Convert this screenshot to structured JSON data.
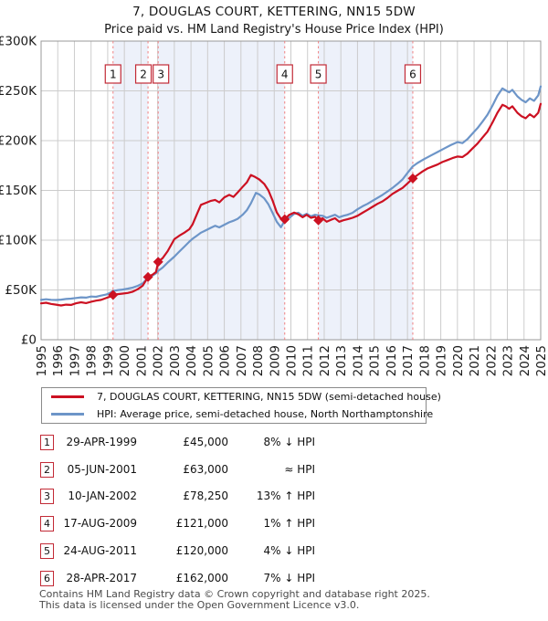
{
  "header": {
    "title": "7, DOUGLAS COURT, KETTERING, NN15 5DW",
    "subtitle": "Price paid vs. HM Land Registry's House Price Index (HPI)"
  },
  "chart_data": {
    "type": "line",
    "title": "7, DOUGLAS COURT, KETTERING, NN15 5DW",
    "subtitle": "Price paid vs. HM Land Registry's House Price Index (HPI)",
    "grid": true,
    "legend_position": "bottom",
    "x_axis": {
      "min": 1995,
      "max": 2025,
      "tick_years": [
        1995,
        1996,
        1997,
        1998,
        1999,
        2000,
        2001,
        2002,
        2003,
        2004,
        2005,
        2006,
        2007,
        2008,
        2009,
        2010,
        2011,
        2012,
        2013,
        2014,
        2015,
        2016,
        2017,
        2018,
        2019,
        2020,
        2021,
        2022,
        2023,
        2024,
        2025
      ]
    },
    "y_axis": {
      "min": 0,
      "max": 300000,
      "ticks": [
        {
          "label": "£300K",
          "value": 300000
        },
        {
          "label": "£250K",
          "value": 250000
        },
        {
          "label": "£200K",
          "value": 200000
        },
        {
          "label": "£150K",
          "value": 150000
        },
        {
          "label": "£100K",
          "value": 100000
        },
        {
          "label": "£50K",
          "value": 50000
        },
        {
          "label": "£0",
          "value": 0
        }
      ]
    },
    "colors": {
      "property_line": "#cc1122",
      "hpi_line": "#6d95c8",
      "band": "#edf1fa",
      "grid": "#cccccc",
      "frame": "#999999",
      "dash_line": "#f08080",
      "sale_marker": "#cc1122",
      "number_box_border": "#c22a36"
    },
    "series": [
      {
        "name": "HPI: Average price, semi-detached house, North Northamptonshire",
        "color": "#6d95c8",
        "points": [
          [
            1995.0,
            40000
          ],
          [
            1995.3,
            40600
          ],
          [
            1995.6,
            40100
          ],
          [
            1995.9,
            39900
          ],
          [
            1996.2,
            40300
          ],
          [
            1996.5,
            40900
          ],
          [
            1996.8,
            41300
          ],
          [
            1997.1,
            41900
          ],
          [
            1997.4,
            42600
          ],
          [
            1997.7,
            42300
          ],
          [
            1998.0,
            43400
          ],
          [
            1998.3,
            43100
          ],
          [
            1998.6,
            44300
          ],
          [
            1998.9,
            45300
          ],
          [
            1999.1,
            46800
          ],
          [
            1999.32,
            48900
          ],
          [
            1999.6,
            49800
          ],
          [
            1999.9,
            50400
          ],
          [
            2000.2,
            51300
          ],
          [
            2000.5,
            52400
          ],
          [
            2000.8,
            54100
          ],
          [
            2001.1,
            56600
          ],
          [
            2001.42,
            62000
          ],
          [
            2001.7,
            64600
          ],
          [
            2001.9,
            66800
          ],
          [
            2002.03,
            69200
          ],
          [
            2002.3,
            72500
          ],
          [
            2002.6,
            77500
          ],
          [
            2003.0,
            83500
          ],
          [
            2003.3,
            88500
          ],
          [
            2003.6,
            93500
          ],
          [
            2003.9,
            98500
          ],
          [
            2004.1,
            101500
          ],
          [
            2004.35,
            104500
          ],
          [
            2004.6,
            107500
          ],
          [
            2004.9,
            110000
          ],
          [
            2005.2,
            112500
          ],
          [
            2005.45,
            114500
          ],
          [
            2005.7,
            112800
          ],
          [
            2006.0,
            115500
          ],
          [
            2006.3,
            118000
          ],
          [
            2006.55,
            119500
          ],
          [
            2006.8,
            121500
          ],
          [
            2007.1,
            125500
          ],
          [
            2007.35,
            130000
          ],
          [
            2007.6,
            137000
          ],
          [
            2007.9,
            147500
          ],
          [
            2008.1,
            146000
          ],
          [
            2008.4,
            142000
          ],
          [
            2008.65,
            136000
          ],
          [
            2008.9,
            127500
          ],
          [
            2009.15,
            118500
          ],
          [
            2009.4,
            113000
          ],
          [
            2009.63,
            119700
          ],
          [
            2009.9,
            122500
          ],
          [
            2010.2,
            126500
          ],
          [
            2010.45,
            127500
          ],
          [
            2010.7,
            124500
          ],
          [
            2010.95,
            126500
          ],
          [
            2011.2,
            124000
          ],
          [
            2011.45,
            125500
          ],
          [
            2011.65,
            125000
          ],
          [
            2011.9,
            124500
          ],
          [
            2012.15,
            122500
          ],
          [
            2012.4,
            124000
          ],
          [
            2012.65,
            125500
          ],
          [
            2012.9,
            123000
          ],
          [
            2013.15,
            124500
          ],
          [
            2013.4,
            125500
          ],
          [
            2013.7,
            127500
          ],
          [
            2014.0,
            131000
          ],
          [
            2014.3,
            134000
          ],
          [
            2014.6,
            136500
          ],
          [
            2014.9,
            139500
          ],
          [
            2015.2,
            142500
          ],
          [
            2015.5,
            145500
          ],
          [
            2015.8,
            149000
          ],
          [
            2016.1,
            152500
          ],
          [
            2016.4,
            156500
          ],
          [
            2016.7,
            161000
          ],
          [
            2017.0,
            167500
          ],
          [
            2017.32,
            174200
          ],
          [
            2017.6,
            177500
          ],
          [
            2018.0,
            181500
          ],
          [
            2018.4,
            185000
          ],
          [
            2018.8,
            188500
          ],
          [
            2019.2,
            192000
          ],
          [
            2019.6,
            195500
          ],
          [
            2020.0,
            198500
          ],
          [
            2020.3,
            197500
          ],
          [
            2020.6,
            201500
          ],
          [
            2020.9,
            207000
          ],
          [
            2021.2,
            212500
          ],
          [
            2021.5,
            219000
          ],
          [
            2021.8,
            226000
          ],
          [
            2022.1,
            235000
          ],
          [
            2022.4,
            245000
          ],
          [
            2022.7,
            252500
          ],
          [
            2022.9,
            250500
          ],
          [
            2023.1,
            248500
          ],
          [
            2023.3,
            251000
          ],
          [
            2023.6,
            244500
          ],
          [
            2023.85,
            241000
          ],
          [
            2024.1,
            238500
          ],
          [
            2024.35,
            242500
          ],
          [
            2024.6,
            240000
          ],
          [
            2024.85,
            245500
          ],
          [
            2025.0,
            254500
          ]
        ]
      },
      {
        "name": "7, DOUGLAS COURT, KETTERING, NN15 5DW (semi-detached house)",
        "color": "#cc1122",
        "points": [
          [
            1995.0,
            36500
          ],
          [
            1995.3,
            37200
          ],
          [
            1995.6,
            36000
          ],
          [
            1995.9,
            35200
          ],
          [
            1996.2,
            34400
          ],
          [
            1996.5,
            35200
          ],
          [
            1996.8,
            35000
          ],
          [
            1997.1,
            36600
          ],
          [
            1997.4,
            37600
          ],
          [
            1997.7,
            36800
          ],
          [
            1998.0,
            38200
          ],
          [
            1998.3,
            39300
          ],
          [
            1998.6,
            40000
          ],
          [
            1998.9,
            41800
          ],
          [
            1999.1,
            43000
          ],
          [
            1999.32,
            45000
          ],
          [
            1999.6,
            45800
          ],
          [
            1999.9,
            46300
          ],
          [
            2000.2,
            47000
          ],
          [
            2000.5,
            48300
          ],
          [
            2000.8,
            50700
          ],
          [
            2001.1,
            54200
          ],
          [
            2001.42,
            63000
          ],
          [
            2001.7,
            65500
          ],
          [
            2001.9,
            68000
          ],
          [
            2002.03,
            78250
          ],
          [
            2002.3,
            82000
          ],
          [
            2002.6,
            89000
          ],
          [
            2003.0,
            101000
          ],
          [
            2003.3,
            104500
          ],
          [
            2003.6,
            107500
          ],
          [
            2003.9,
            111000
          ],
          [
            2004.1,
            116000
          ],
          [
            2004.35,
            126000
          ],
          [
            2004.6,
            135500
          ],
          [
            2004.9,
            137500
          ],
          [
            2005.2,
            139500
          ],
          [
            2005.45,
            140500
          ],
          [
            2005.7,
            138000
          ],
          [
            2006.0,
            143000
          ],
          [
            2006.3,
            145500
          ],
          [
            2006.55,
            143500
          ],
          [
            2006.8,
            148000
          ],
          [
            2007.1,
            153500
          ],
          [
            2007.35,
            158000
          ],
          [
            2007.6,
            165500
          ],
          [
            2007.85,
            163500
          ],
          [
            2008.1,
            161000
          ],
          [
            2008.4,
            156500
          ],
          [
            2008.65,
            150000
          ],
          [
            2008.9,
            140000
          ],
          [
            2009.15,
            128000
          ],
          [
            2009.4,
            121500
          ],
          [
            2009.63,
            121000
          ],
          [
            2009.9,
            125500
          ],
          [
            2010.2,
            127700
          ],
          [
            2010.45,
            126000
          ],
          [
            2010.7,
            123000
          ],
          [
            2010.95,
            125500
          ],
          [
            2011.2,
            122500
          ],
          [
            2011.45,
            123500
          ],
          [
            2011.65,
            120000
          ],
          [
            2011.9,
            122000
          ],
          [
            2012.15,
            118500
          ],
          [
            2012.4,
            120500
          ],
          [
            2012.65,
            122000
          ],
          [
            2012.9,
            118500
          ],
          [
            2013.15,
            120000
          ],
          [
            2013.4,
            121000
          ],
          [
            2013.7,
            122500
          ],
          [
            2014.0,
            124500
          ],
          [
            2014.3,
            127500
          ],
          [
            2014.6,
            130500
          ],
          [
            2014.9,
            133500
          ],
          [
            2015.2,
            136500
          ],
          [
            2015.5,
            139000
          ],
          [
            2015.8,
            142500
          ],
          [
            2016.1,
            146500
          ],
          [
            2016.4,
            149500
          ],
          [
            2016.7,
            152500
          ],
          [
            2017.0,
            157000
          ],
          [
            2017.32,
            162000
          ],
          [
            2017.6,
            165500
          ],
          [
            2017.9,
            169000
          ],
          [
            2018.2,
            172000
          ],
          [
            2018.5,
            174000
          ],
          [
            2018.8,
            176000
          ],
          [
            2019.1,
            178500
          ],
          [
            2019.4,
            180500
          ],
          [
            2019.7,
            182500
          ],
          [
            2020.0,
            184000
          ],
          [
            2020.3,
            183500
          ],
          [
            2020.6,
            187000
          ],
          [
            2020.9,
            192000
          ],
          [
            2021.2,
            197000
          ],
          [
            2021.5,
            203000
          ],
          [
            2021.8,
            209000
          ],
          [
            2022.1,
            218000
          ],
          [
            2022.4,
            228000
          ],
          [
            2022.7,
            236000
          ],
          [
            2022.9,
            234500
          ],
          [
            2023.1,
            232000
          ],
          [
            2023.3,
            234500
          ],
          [
            2023.6,
            228000
          ],
          [
            2023.85,
            224500
          ],
          [
            2024.1,
            222500
          ],
          [
            2024.35,
            226500
          ],
          [
            2024.6,
            223500
          ],
          [
            2024.85,
            228000
          ],
          [
            2025.0,
            237000
          ]
        ]
      }
    ],
    "sales": [
      {
        "n": "1",
        "year": 1999.32,
        "price": 45000,
        "box_dx": 0
      },
      {
        "n": "2",
        "year": 2001.42,
        "price": 63000,
        "box_dx": -5
      },
      {
        "n": "3",
        "year": 2002.03,
        "price": 78250,
        "box_dx": 3
      },
      {
        "n": "4",
        "year": 2009.63,
        "price": 121000,
        "box_dx": 0
      },
      {
        "n": "5",
        "year": 2011.65,
        "price": 120000,
        "box_dx": 0
      },
      {
        "n": "6",
        "year": 2017.32,
        "price": 162000,
        "box_dx": 0
      }
    ],
    "ownership_bands": [
      [
        1999.32,
        2001.42
      ],
      [
        2002.03,
        2009.63
      ],
      [
        2011.65,
        2017.32
      ]
    ]
  },
  "legend": {
    "items": [
      {
        "label": "7, DOUGLAS COURT, KETTERING, NN15 5DW (semi-detached house)",
        "color": "#cc1122"
      },
      {
        "label": "HPI: Average price, semi-detached house, North Northamptonshire",
        "color": "#6d95c8"
      }
    ]
  },
  "transactions": {
    "rows": [
      {
        "n": "1",
        "date": "29-APR-1999",
        "price": "£45,000",
        "vs_hpi": "8% ↓ HPI"
      },
      {
        "n": "2",
        "date": "05-JUN-2001",
        "price": "£63,000",
        "vs_hpi": "≈ HPI"
      },
      {
        "n": "3",
        "date": "10-JAN-2002",
        "price": "£78,250",
        "vs_hpi": "13% ↑ HPI"
      },
      {
        "n": "4",
        "date": "17-AUG-2009",
        "price": "£121,000",
        "vs_hpi": "1% ↑ HPI"
      },
      {
        "n": "5",
        "date": "24-AUG-2011",
        "price": "£120,000",
        "vs_hpi": "4% ↓ HPI"
      },
      {
        "n": "6",
        "date": "28-APR-2017",
        "price": "£162,000",
        "vs_hpi": "7% ↓ HPI"
      }
    ]
  },
  "footer": {
    "line1": "Contains HM Land Registry data © Crown copyright and database right 2025.",
    "line2": "This data is licensed under the Open Government Licence v3.0."
  }
}
